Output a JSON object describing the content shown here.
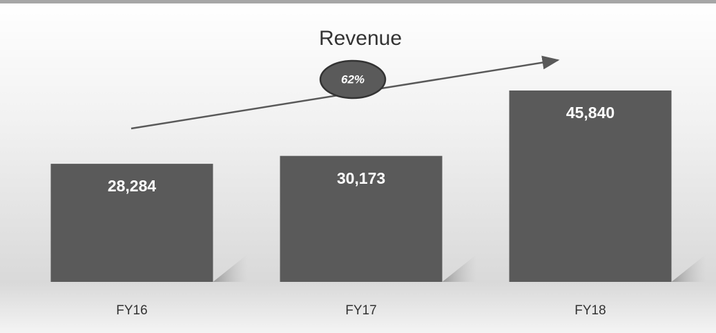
{
  "chart_data": {
    "type": "bar",
    "title": "Revenue",
    "categories": [
      "FY16",
      "FY17",
      "FY18"
    ],
    "values": [
      28284,
      30173,
      45840
    ],
    "value_labels": [
      "28,284",
      "30,173",
      "45,840"
    ],
    "color": "#5a5a5a",
    "annotation": "62%"
  }
}
